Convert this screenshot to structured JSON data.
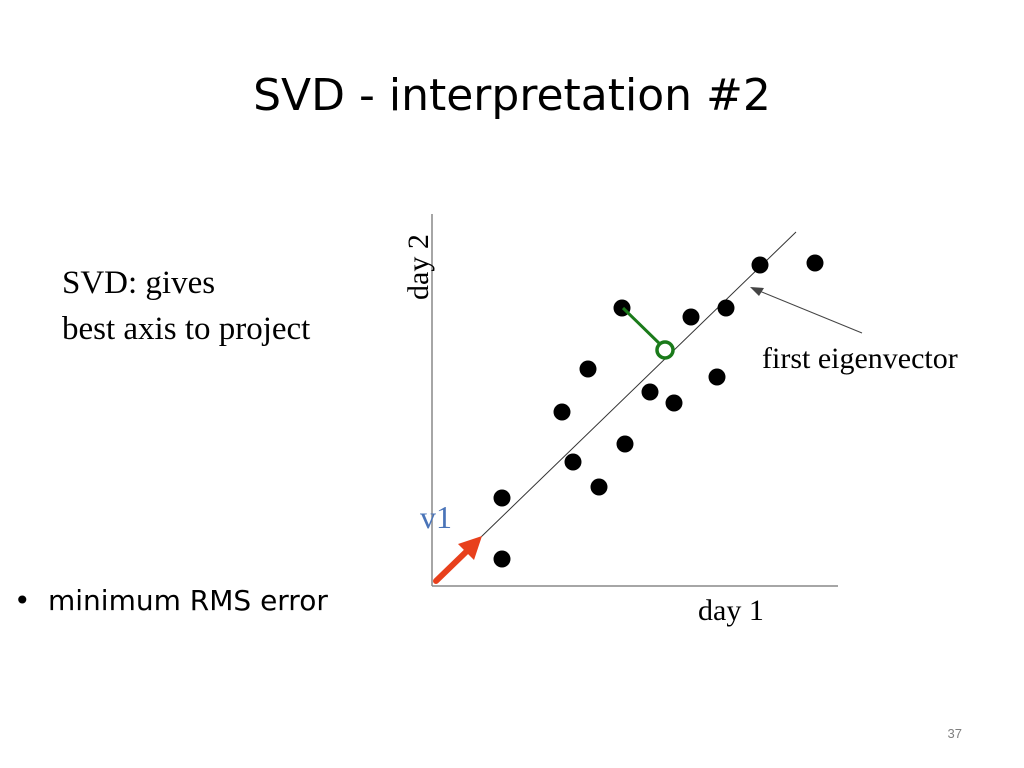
{
  "slide": {
    "title": "SVD - interpretation #2",
    "intro_lines": [
      "SVD: gives",
      "best axis to project"
    ],
    "bullets": [
      "minimum RMS error"
    ],
    "page_number": "37"
  },
  "figure": {
    "xlabel": "day 1",
    "ylabel": "day 2",
    "eigen_label": "first eigenvector",
    "vector_label": "v1",
    "colors": {
      "points": "#000000",
      "arrow": "#e8401c",
      "projection": "#1a7a1a",
      "vector_label": "#4a74b8",
      "axis": "#888888"
    }
  }
}
